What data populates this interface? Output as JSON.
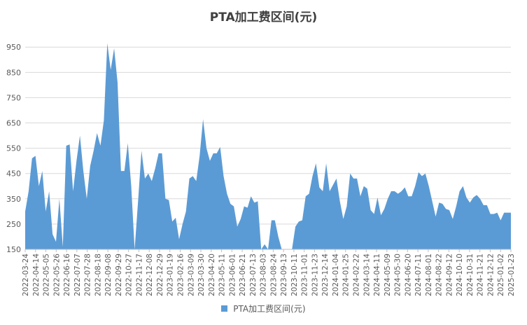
{
  "chart_data": {
    "type": "area",
    "title": "PTA加工费区间(元)",
    "xlabel": "",
    "ylabel": "",
    "ylim": [
      150,
      970
    ],
    "y_ticks": [
      150,
      250,
      350,
      450,
      550,
      650,
      750,
      850,
      950
    ],
    "grid": true,
    "legend_position": "bottom",
    "x_tick_labels": [
      "2022-03-24",
      "2022-04-14",
      "2022-05-05",
      "2022-05-26",
      "2022-06-16",
      "2022-07-07",
      "2022-07-28",
      "2022-08-18",
      "2022-09-08",
      "2022-09-29",
      "2022-10-27",
      "2022-11-17",
      "2022-12-08",
      "2022-12-29",
      "2023-01-19",
      "2023-02-16",
      "2023-03-09",
      "2023-03-30",
      "2023-04-20",
      "2023-05-11",
      "2023-06-01",
      "2023-06-21",
      "2023-07-13",
      "2023-08-03",
      "2023-08-24",
      "2023-09-13",
      "2023-10-11",
      "2023-11-01",
      "2023-11-23",
      "2023-12-14",
      "2024-01-04",
      "2024-01-25",
      "2024-02-22",
      "2024-03-14",
      "2024-04-11",
      "2024-05-09",
      "2024-05-30",
      "2024-06-20",
      "2024-07-11",
      "2024-08-01",
      "2024-08-22",
      "2024-09-12",
      "2024-10-10",
      "2024-10-31",
      "2024-11-21",
      "2024-12-12",
      "2025-01-02",
      "2025-01-23"
    ],
    "series": [
      {
        "name": "PTA加工费区间(元)",
        "color": "#5b9bd5",
        "values": [
          300,
          380,
          510,
          520,
          400,
          460,
          300,
          380,
          210,
          180,
          350,
          160,
          560,
          565,
          380,
          500,
          600,
          460,
          350,
          480,
          540,
          610,
          560,
          660,
          965,
          860,
          945,
          810,
          460,
          460,
          570,
          400,
          150,
          340,
          540,
          430,
          450,
          420,
          470,
          530,
          530,
          350,
          345,
          260,
          275,
          190,
          250,
          300,
          430,
          440,
          420,
          520,
          665,
          550,
          500,
          530,
          530,
          555,
          440,
          370,
          330,
          320,
          240,
          270,
          320,
          315,
          360,
          335,
          340,
          150,
          170,
          150,
          265,
          265,
          200,
          150,
          150,
          150,
          150,
          240,
          260,
          265,
          360,
          370,
          440,
          490,
          395,
          380,
          490,
          380,
          405,
          430,
          340,
          270,
          320,
          450,
          430,
          430,
          360,
          400,
          390,
          305,
          290,
          355,
          285,
          310,
          350,
          380,
          380,
          370,
          380,
          395,
          360,
          360,
          400,
          455,
          440,
          450,
          400,
          340,
          280,
          335,
          330,
          310,
          305,
          270,
          320,
          380,
          400,
          355,
          335,
          355,
          365,
          350,
          325,
          325,
          290,
          290,
          295,
          265,
          295,
          295,
          295
        ]
      }
    ]
  }
}
